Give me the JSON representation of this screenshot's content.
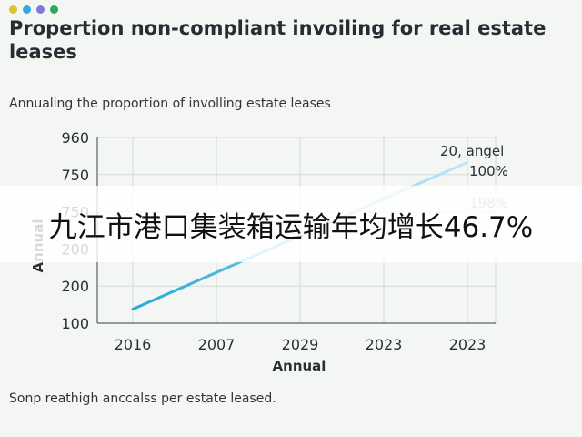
{
  "header": {
    "dots": [
      "#e0c13a",
      "#34a8e0",
      "#7c7ae0",
      "#2fa85a"
    ],
    "title": "Propertion non-compliant invoiling for real estate leases",
    "subtitle": "Annualing the proportion of involling estate leases"
  },
  "chart_data": {
    "type": "line",
    "ylabel": "Annual",
    "xlabel": "Annual",
    "y_ticks": [
      "960",
      "750",
      "750",
      "200",
      "200",
      "100"
    ],
    "x_ticks": [
      "2016",
      "2007",
      "2029",
      "2023",
      "2023"
    ],
    "series": [
      {
        "values": [
          165,
          845
        ],
        "x": [
          "2016",
          "2023"
        ],
        "color": "#2bb3e0"
      }
    ],
    "annotations": [
      "20, angel",
      "100%",
      "198%"
    ],
    "grid": true,
    "legend": "none"
  },
  "footnote": "Sonp reathigh anccalss per estate leased.",
  "banner": {
    "text": "九江市港口集装箱运输年均增长46.7%"
  }
}
